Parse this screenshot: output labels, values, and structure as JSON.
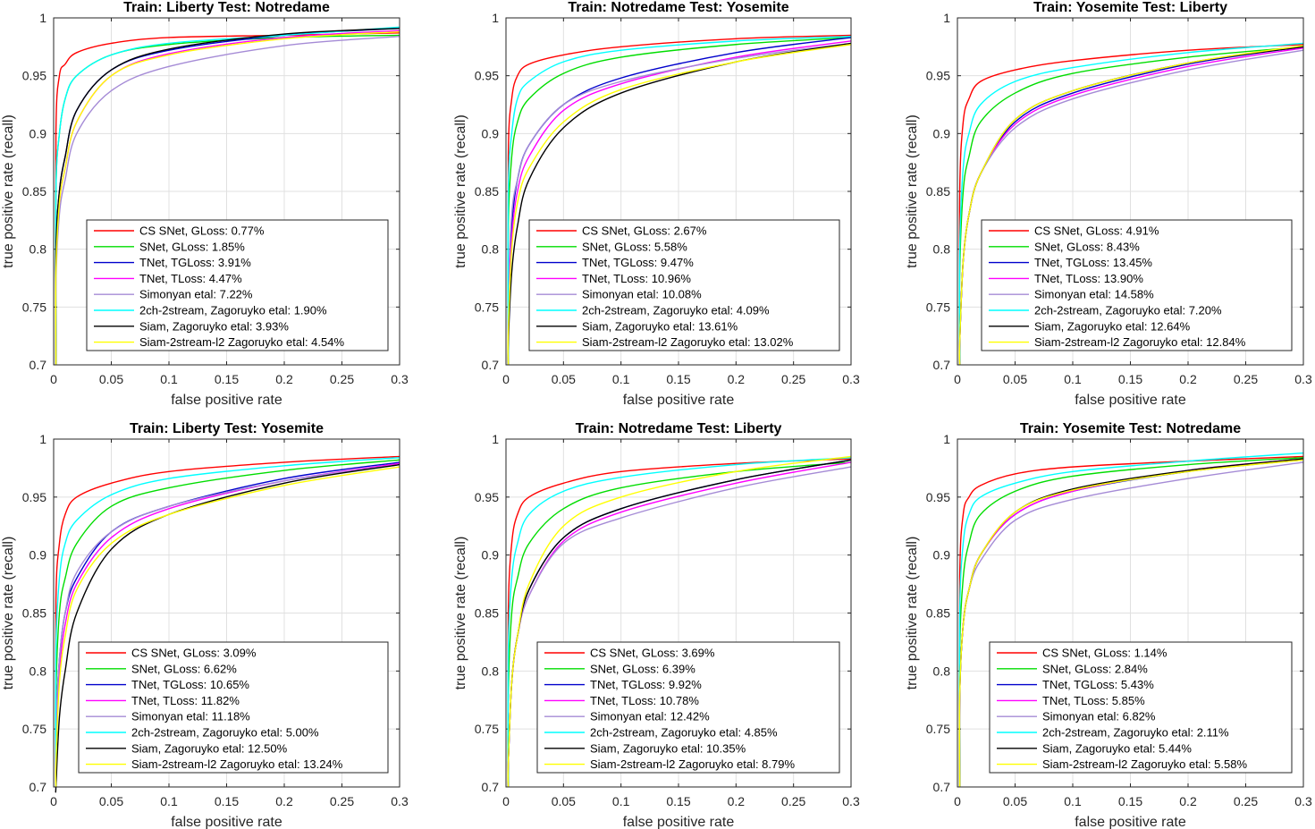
{
  "chart_data": [
    {
      "type": "line",
      "title": "Train: Liberty     Test: Notredame",
      "xlabel": "false positive rate",
      "ylabel": "true positive rate (recall)",
      "xlim": [
        0,
        0.3
      ],
      "ylim": [
        0.7,
        1
      ],
      "grid": true,
      "legend_position": "bottom-right",
      "xticks": [
        "0",
        "0.05",
        "0.1",
        "0.15",
        "0.2",
        "0.25",
        "0.3"
      ],
      "yticks": [
        "0.7",
        "0.75",
        "0.8",
        "0.85",
        "0.9",
        "0.95",
        "1"
      ],
      "x": [
        0.002,
        0.005,
        0.01,
        0.02,
        0.05,
        0.1,
        0.2,
        0.3
      ],
      "series": [
        {
          "name": "CS SNet, GLoss: 0.77%",
          "color": "#ff0000",
          "values": [
            0.9,
            0.95,
            0.96,
            0.97,
            0.978,
            0.983,
            0.985,
            0.987
          ]
        },
        {
          "name": "SNet, GLoss: 1.85%",
          "color": "#00dd00",
          "values": [
            0.85,
            0.9,
            0.93,
            0.95,
            0.968,
            0.977,
            0.983,
            0.985
          ]
        },
        {
          "name": "TNet, TGLoss: 3.91%",
          "color": "#0000cc",
          "values": [
            0.8,
            0.85,
            0.88,
            0.92,
            0.955,
            0.972,
            0.985,
            0.991
          ]
        },
        {
          "name": "TNet, TLoss: 4.47%",
          "color": "#ff00ff",
          "values": [
            0.78,
            0.84,
            0.87,
            0.91,
            0.95,
            0.969,
            0.983,
            0.989
          ]
        },
        {
          "name": "Simonyan etal: 7.22%",
          "color": "#a58bd6",
          "values": [
            0.77,
            0.83,
            0.86,
            0.9,
            0.937,
            0.958,
            0.976,
            0.984
          ]
        },
        {
          "name": "2ch-2stream, Zagoruyko etal: 1.90%",
          "color": "#00ffff",
          "values": [
            0.85,
            0.9,
            0.93,
            0.95,
            0.968,
            0.978,
            0.985,
            0.992
          ]
        },
        {
          "name": "Siam, Zagoruyko etal: 3.93%",
          "color": "#000000",
          "values": [
            0.8,
            0.85,
            0.88,
            0.92,
            0.955,
            0.973,
            0.986,
            0.991
          ]
        },
        {
          "name": "Siam-2stream-l2 Zagoruyko etal: 4.54%",
          "color": "#ffff00",
          "values": [
            0.78,
            0.84,
            0.87,
            0.91,
            0.95,
            0.968,
            0.982,
            0.988
          ]
        }
      ]
    },
    {
      "type": "line",
      "title": "Train: Notredame     Test: Yosemite",
      "xlabel": "false positive rate",
      "ylabel": "true positive rate (recall)",
      "xlim": [
        0,
        0.3
      ],
      "ylim": [
        0.7,
        1
      ],
      "grid": true,
      "legend_position": "bottom-right",
      "xticks": [
        "0",
        "0.05",
        "0.1",
        "0.15",
        "0.2",
        "0.25",
        "0.3"
      ],
      "yticks": [
        "0.7",
        "0.75",
        "0.8",
        "0.85",
        "0.9",
        "0.95",
        "1"
      ],
      "x": [
        0.002,
        0.005,
        0.01,
        0.02,
        0.05,
        0.1,
        0.2,
        0.3
      ],
      "series": [
        {
          "name": "CS SNet, GLoss: 2.67%",
          "color": "#ff0000",
          "values": [
            0.88,
            0.93,
            0.95,
            0.96,
            0.968,
            0.975,
            0.982,
            0.985
          ]
        },
        {
          "name": "SNet, GLoss: 5.58%",
          "color": "#00dd00",
          "values": [
            0.82,
            0.88,
            0.91,
            0.93,
            0.952,
            0.966,
            0.977,
            0.983
          ]
        },
        {
          "name": "TNet, TGLoss: 9.47%",
          "color": "#0000cc",
          "values": [
            0.75,
            0.82,
            0.86,
            0.89,
            0.925,
            0.948,
            0.97,
            0.983
          ]
        },
        {
          "name": "TNet, TLoss: 10.96%",
          "color": "#ff00ff",
          "values": [
            0.74,
            0.81,
            0.85,
            0.88,
            0.92,
            0.943,
            0.966,
            0.98
          ]
        },
        {
          "name": "Simonyan etal: 10.08%",
          "color": "#a58bd6",
          "values": [
            0.76,
            0.83,
            0.86,
            0.89,
            0.925,
            0.945,
            0.965,
            0.978
          ]
        },
        {
          "name": "2ch-2stream, Zagoruyko etal: 4.09%",
          "color": "#00ffff",
          "values": [
            0.85,
            0.9,
            0.93,
            0.945,
            0.962,
            0.972,
            0.98,
            0.984
          ]
        },
        {
          "name": "Siam, Zagoruyko etal: 13.61%",
          "color": "#000000",
          "values": [
            0.72,
            0.78,
            0.82,
            0.86,
            0.905,
            0.935,
            0.962,
            0.978
          ]
        },
        {
          "name": "Siam-2stream-l2 Zagoruyko etal: 13.02%",
          "color": "#ffff00",
          "values": [
            0.73,
            0.8,
            0.84,
            0.87,
            0.91,
            0.938,
            0.962,
            0.977
          ]
        }
      ]
    },
    {
      "type": "line",
      "title": "Train: Yosemite     Test: Liberty",
      "xlabel": "false positive rate",
      "ylabel": "true positive rate (recall)",
      "xlim": [
        0,
        0.3
      ],
      "ylim": [
        0.7,
        1
      ],
      "grid": true,
      "legend_position": "bottom-right",
      "xticks": [
        "0",
        "0.05",
        "0.1",
        "0.15",
        "0.2",
        "0.25",
        "0.3"
      ],
      "yticks": [
        "0.7",
        "0.75",
        "0.8",
        "0.85",
        "0.9",
        "0.95",
        "1"
      ],
      "x": [
        0.002,
        0.005,
        0.01,
        0.02,
        0.05,
        0.1,
        0.2,
        0.3
      ],
      "series": [
        {
          "name": "CS SNet, GLoss: 4.91%",
          "color": "#ff0000",
          "values": [
            0.85,
            0.91,
            0.93,
            0.945,
            0.955,
            0.963,
            0.972,
            0.977
          ]
        },
        {
          "name": "SNet, GLoss: 8.43%",
          "color": "#00dd00",
          "values": [
            0.78,
            0.85,
            0.88,
            0.91,
            0.935,
            0.952,
            0.966,
            0.975
          ]
        },
        {
          "name": "TNet, TGLoss: 13.45%",
          "color": "#0000cc",
          "values": [
            0.72,
            0.79,
            0.83,
            0.865,
            0.91,
            0.935,
            0.96,
            0.975
          ]
        },
        {
          "name": "TNet, TLoss: 13.90%",
          "color": "#ff00ff",
          "values": [
            0.72,
            0.79,
            0.83,
            0.865,
            0.908,
            0.933,
            0.958,
            0.974
          ]
        },
        {
          "name": "Simonyan etal: 14.58%",
          "color": "#a58bd6",
          "values": [
            0.72,
            0.79,
            0.83,
            0.865,
            0.905,
            0.93,
            0.955,
            0.972
          ]
        },
        {
          "name": "2ch-2stream, Zagoruyko etal: 7.20%",
          "color": "#00ffff",
          "values": [
            0.8,
            0.87,
            0.9,
            0.925,
            0.945,
            0.957,
            0.97,
            0.978
          ]
        },
        {
          "name": "Siam, Zagoruyko etal: 12.64%",
          "color": "#000000",
          "values": [
            0.72,
            0.79,
            0.83,
            0.865,
            0.912,
            0.937,
            0.961,
            0.975
          ]
        },
        {
          "name": "Siam-2stream-l2 Zagoruyko etal: 12.84%",
          "color": "#ffff00",
          "values": [
            0.72,
            0.79,
            0.83,
            0.865,
            0.912,
            0.937,
            0.961,
            0.976
          ]
        }
      ]
    },
    {
      "type": "line",
      "title": "Train: Liberty     Test: Yosemite",
      "xlabel": "false positive rate",
      "ylabel": "true positive rate (recall)",
      "xlim": [
        0,
        0.3
      ],
      "ylim": [
        0.7,
        1
      ],
      "grid": true,
      "legend_position": "bottom-right",
      "xticks": [
        "0",
        "0.05",
        "0.1",
        "0.15",
        "0.2",
        "0.25",
        "0.3"
      ],
      "yticks": [
        "0.7",
        "0.75",
        "0.8",
        "0.85",
        "0.9",
        "0.95",
        "1"
      ],
      "x": [
        0.002,
        0.005,
        0.01,
        0.02,
        0.05,
        0.1,
        0.2,
        0.3
      ],
      "series": [
        {
          "name": "CS SNet, GLoss: 3.09%",
          "color": "#ff0000",
          "values": [
            0.86,
            0.91,
            0.935,
            0.95,
            0.962,
            0.972,
            0.98,
            0.985
          ]
        },
        {
          "name": "SNet, GLoss: 6.62%",
          "color": "#00dd00",
          "values": [
            0.78,
            0.85,
            0.88,
            0.91,
            0.942,
            0.958,
            0.973,
            0.982
          ]
        },
        {
          "name": "TNet, TGLoss: 10.65%",
          "color": "#0000cc",
          "values": [
            0.75,
            0.81,
            0.85,
            0.88,
            0.92,
            0.942,
            0.966,
            0.98
          ]
        },
        {
          "name": "TNet, TLoss: 11.82%",
          "color": "#ff00ff",
          "values": [
            0.74,
            0.8,
            0.84,
            0.875,
            0.915,
            0.94,
            0.964,
            0.979
          ]
        },
        {
          "name": "Simonyan etal: 11.18%",
          "color": "#a58bd6",
          "values": [
            0.75,
            0.81,
            0.85,
            0.885,
            0.92,
            0.942,
            0.964,
            0.978
          ]
        },
        {
          "name": "2ch-2stream, Zagoruyko etal: 5.00%",
          "color": "#00ffff",
          "values": [
            0.82,
            0.88,
            0.91,
            0.93,
            0.952,
            0.966,
            0.977,
            0.984
          ]
        },
        {
          "name": "Siam, Zagoruyko etal: 12.50%",
          "color": "#000000",
          "values": [
            0.7,
            0.76,
            0.8,
            0.85,
            0.905,
            0.935,
            0.962,
            0.978
          ]
        },
        {
          "name": "Siam-2stream-l2 Zagoruyko etal: 13.24%",
          "color": "#ffff00",
          "values": [
            0.72,
            0.79,
            0.83,
            0.87,
            0.91,
            0.935,
            0.96,
            0.976
          ]
        }
      ]
    },
    {
      "type": "line",
      "title": "Train: Notredame     Test: Liberty",
      "xlabel": "false positive rate",
      "ylabel": "true positive rate (recall)",
      "xlim": [
        0,
        0.3
      ],
      "ylim": [
        0.7,
        1
      ],
      "grid": true,
      "legend_position": "bottom-right",
      "xticks": [
        "0",
        "0.05",
        "0.1",
        "0.15",
        "0.2",
        "0.25",
        "0.3"
      ],
      "yticks": [
        "0.7",
        "0.75",
        "0.8",
        "0.85",
        "0.9",
        "0.95",
        "1"
      ],
      "x": [
        0.002,
        0.005,
        0.01,
        0.02,
        0.05,
        0.1,
        0.2,
        0.3
      ],
      "series": [
        {
          "name": "CS SNet, GLoss: 3.69%",
          "color": "#ff0000",
          "values": [
            0.85,
            0.91,
            0.935,
            0.95,
            0.962,
            0.972,
            0.979,
            0.983
          ]
        },
        {
          "name": "SNet, GLoss: 6.39%",
          "color": "#00dd00",
          "values": [
            0.78,
            0.85,
            0.88,
            0.91,
            0.94,
            0.958,
            0.972,
            0.98
          ]
        },
        {
          "name": "TNet, TGLoss: 9.92%",
          "color": "#0000cc",
          "values": [
            0.72,
            0.79,
            0.83,
            0.87,
            0.915,
            0.94,
            0.965,
            0.982
          ]
        },
        {
          "name": "TNet, TLoss: 10.78%",
          "color": "#ff00ff",
          "values": [
            0.72,
            0.79,
            0.83,
            0.865,
            0.912,
            0.937,
            0.962,
            0.98
          ]
        },
        {
          "name": "Simonyan etal: 12.42%",
          "color": "#a58bd6",
          "values": [
            0.72,
            0.79,
            0.83,
            0.865,
            0.91,
            0.932,
            0.958,
            0.976
          ]
        },
        {
          "name": "2ch-2stream, Zagoruyko etal: 4.85%",
          "color": "#00ffff",
          "values": [
            0.82,
            0.88,
            0.91,
            0.935,
            0.955,
            0.967,
            0.978,
            0.984
          ]
        },
        {
          "name": "Siam, Zagoruyko etal: 10.35%",
          "color": "#000000",
          "values": [
            0.72,
            0.79,
            0.83,
            0.87,
            0.915,
            0.94,
            0.965,
            0.982
          ]
        },
        {
          "name": "Siam-2stream-l2 Zagoruyko etal: 8.79%",
          "color": "#ffff00",
          "values": [
            0.72,
            0.79,
            0.83,
            0.875,
            0.925,
            0.95,
            0.972,
            0.985
          ]
        }
      ]
    },
    {
      "type": "line",
      "title": "Train: Yosemite     Test: Notredame",
      "xlabel": "false positive rate",
      "ylabel": "true positive rate (recall)",
      "xlim": [
        0,
        0.3
      ],
      "ylim": [
        0.7,
        1
      ],
      "grid": true,
      "legend_position": "bottom-right",
      "xticks": [
        "0",
        "0.05",
        "0.1",
        "0.15",
        "0.2",
        "0.25",
        "0.3"
      ],
      "yticks": [
        "0.7",
        "0.75",
        "0.8",
        "0.85",
        "0.9",
        "0.95",
        "1"
      ],
      "x": [
        0.002,
        0.005,
        0.01,
        0.02,
        0.05,
        0.1,
        0.2,
        0.3
      ],
      "series": [
        {
          "name": "CS SNet, GLoss: 1.14%",
          "color": "#ff0000",
          "values": [
            0.88,
            0.935,
            0.95,
            0.96,
            0.97,
            0.976,
            0.981,
            0.985
          ]
        },
        {
          "name": "SNet, GLoss: 2.84%",
          "color": "#00dd00",
          "values": [
            0.82,
            0.88,
            0.91,
            0.935,
            0.955,
            0.968,
            0.978,
            0.984
          ]
        },
        {
          "name": "TNet, TGLoss: 5.43%",
          "color": "#0000cc",
          "values": [
            0.78,
            0.84,
            0.87,
            0.9,
            0.935,
            0.955,
            0.972,
            0.982
          ]
        },
        {
          "name": "TNet, TLoss: 5.85%",
          "color": "#ff00ff",
          "values": [
            0.78,
            0.84,
            0.87,
            0.9,
            0.935,
            0.955,
            0.973,
            0.983
          ]
        },
        {
          "name": "Simonyan etal: 6.82%",
          "color": "#a58bd6",
          "values": [
            0.78,
            0.84,
            0.87,
            0.895,
            0.93,
            0.948,
            0.966,
            0.98
          ]
        },
        {
          "name": "2ch-2stream, Zagoruyko etal: 2.11%",
          "color": "#00ffff",
          "values": [
            0.85,
            0.91,
            0.935,
            0.95,
            0.962,
            0.972,
            0.981,
            0.988
          ]
        },
        {
          "name": "Siam, Zagoruyko etal: 5.44%",
          "color": "#000000",
          "values": [
            0.78,
            0.84,
            0.87,
            0.9,
            0.937,
            0.957,
            0.973,
            0.983
          ]
        },
        {
          "name": "Siam-2stream-l2 Zagoruyko etal: 5.58%",
          "color": "#ffff00",
          "values": [
            0.78,
            0.84,
            0.87,
            0.9,
            0.937,
            0.956,
            0.972,
            0.982
          ]
        }
      ]
    }
  ]
}
